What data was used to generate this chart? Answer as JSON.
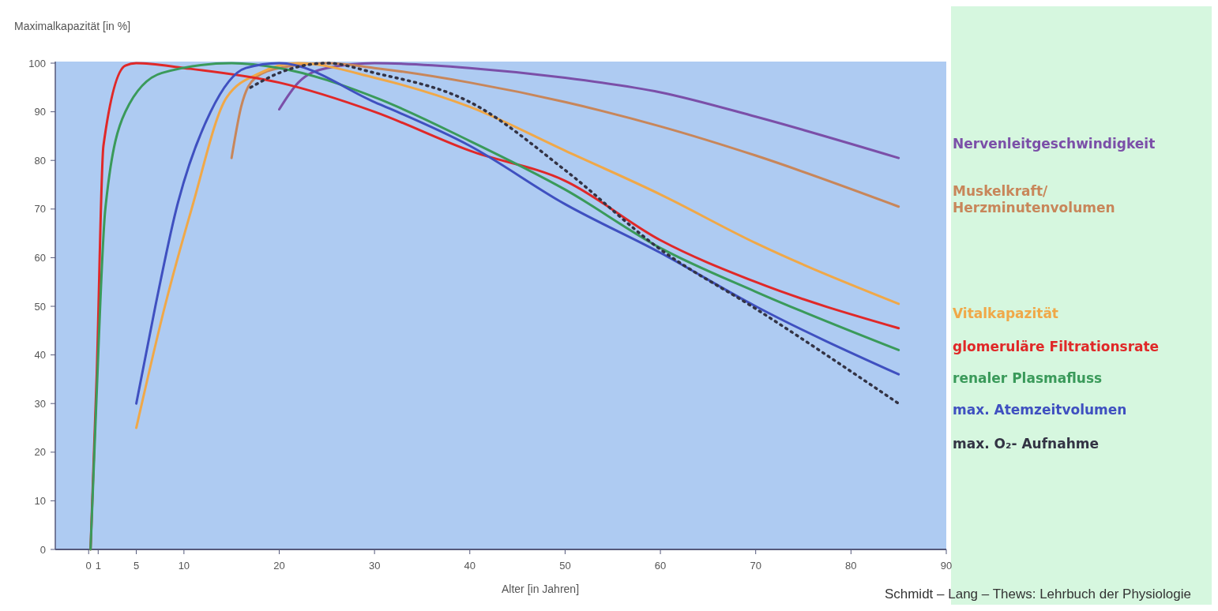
{
  "chart_data": {
    "type": "line",
    "ylabel": "Maximalkapazität [in %]",
    "xlabel": "Alter [in Jahren]",
    "xlim": [
      -3.5,
      90
    ],
    "xticks": [
      0,
      1,
      5,
      10,
      20,
      30,
      40,
      50,
      60,
      70,
      80,
      90
    ],
    "ylim": [
      0,
      100
    ],
    "yticks": [
      0,
      10,
      20,
      30,
      40,
      50,
      60,
      70,
      80,
      90,
      100
    ],
    "grid": false,
    "legend": "right",
    "marker": "none",
    "line_style": "solid",
    "series": [
      {
        "name": "Nervenleitgeschwindigkeit",
        "color": "#7b4fa8",
        "x": [
          20,
          22,
          25,
          30,
          40,
          50,
          60,
          70,
          85
        ],
        "values": [
          90.5,
          96,
          99,
          100,
          99,
          97,
          94,
          89,
          80.5
        ]
      },
      {
        "name": "Muskelkraft/Herzminutenvolumen",
        "color": "#c8865a",
        "x": [
          15,
          16,
          17.5,
          20,
          25,
          30,
          40,
          50,
          60,
          70,
          85
        ],
        "values": [
          80.5,
          91,
          97,
          99,
          100,
          99,
          96,
          92,
          87,
          81,
          70.5
        ]
      },
      {
        "name": "Vitalkapazität",
        "color": "#f0a848",
        "x": [
          5,
          8,
          10.8,
          14.5,
          18,
          22,
          30,
          40,
          50,
          60,
          70,
          85
        ],
        "values": [
          25,
          50,
          70,
          93,
          98,
          100,
          97,
          91,
          82,
          73,
          63,
          50.5
        ]
      },
      {
        "name": "glomeruläre Filtrationsrate",
        "color": "#e02828",
        "x": [
          0.2,
          0.85,
          1.55,
          3.85,
          5,
          10,
          20,
          30,
          40,
          50,
          60,
          70,
          85
        ],
        "values": [
          0,
          36,
          83,
          99.5,
          100,
          99,
          96,
          90,
          82,
          75.8,
          63.6,
          55,
          45.5
        ]
      },
      {
        "name": "renaler Plasmafluss",
        "color": "#3a9a5a",
        "x": [
          0.2,
          0.78,
          1.75,
          3.85,
          7.7,
          15,
          20,
          30,
          40,
          50,
          60,
          70,
          85
        ],
        "values": [
          0,
          29,
          70,
          90,
          98,
          100,
          99,
          93,
          84,
          74,
          62,
          53,
          41
        ]
      },
      {
        "name": "max. Atemzeitvolumen",
        "color": "#3f50c0",
        "x": [
          5,
          7,
          9.2,
          12.8,
          16.5,
          20,
          30,
          40,
          50,
          60,
          70,
          85
        ],
        "values": [
          30,
          50,
          70,
          90,
          99,
          100,
          92,
          83,
          71,
          61,
          50,
          36
        ]
      },
      {
        "name": "max. O₂- Aufnahme",
        "color": "#333344",
        "line_style": "dotted",
        "x": [
          17,
          20,
          25,
          30,
          40,
          50,
          60,
          70,
          85
        ],
        "values": [
          95,
          98,
          100,
          98,
          92,
          78,
          61.7,
          49.5,
          30
        ]
      }
    ],
    "annotations": [
      "Schmidt – Lang – Thews: Lehrbuch der Physiologie"
    ]
  }
}
